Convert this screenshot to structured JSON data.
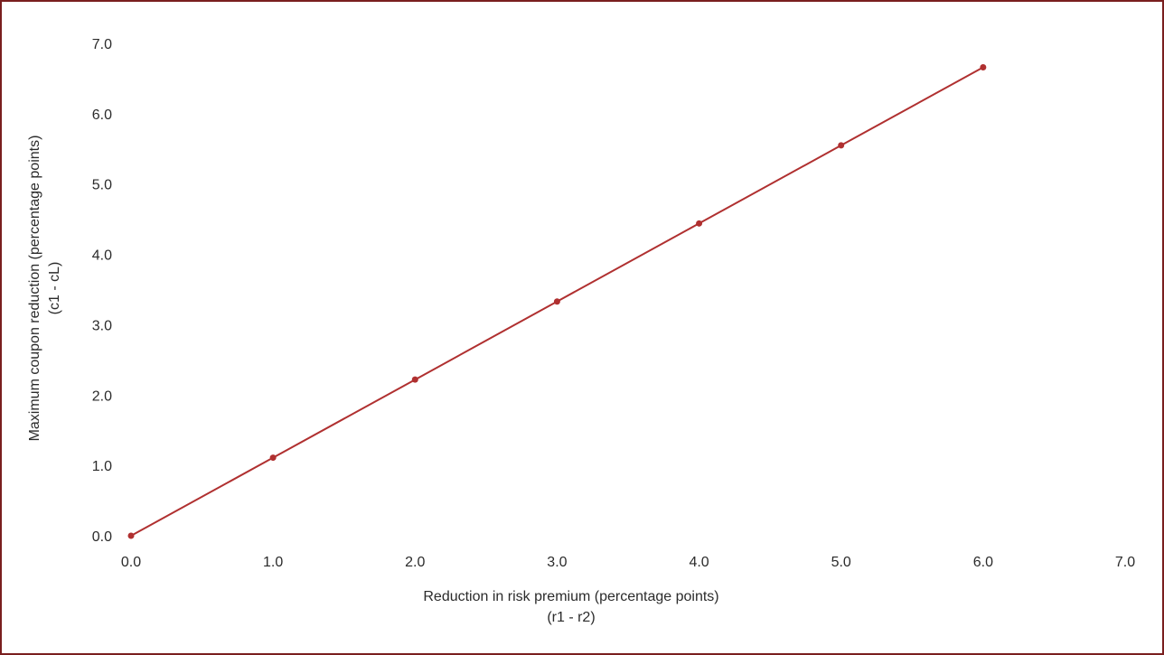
{
  "chart_data": {
    "type": "line",
    "title": "",
    "xlabel": "Reduction in risk premium (percentage points)",
    "xlabel_sub": "(r1 - r2)",
    "ylabel": "Maximum coupon reduction (percentage points)",
    "ylabel_sub": "(c1 - cL)",
    "xlim": [
      0,
      7
    ],
    "ylim": [
      0,
      7
    ],
    "x_ticks": [
      "0.0",
      "1.0",
      "2.0",
      "3.0",
      "4.0",
      "5.0",
      "6.0",
      "7.0"
    ],
    "y_ticks": [
      "0.0",
      "1.0",
      "2.0",
      "3.0",
      "4.0",
      "5.0",
      "6.0",
      "7.0"
    ],
    "grid": false,
    "legend": "none",
    "series": [
      {
        "color": "#b03030",
        "x": [
          0,
          1,
          2,
          3,
          4,
          5,
          6
        ],
        "y": [
          0.0,
          1.11,
          2.22,
          3.33,
          4.44,
          5.55,
          6.66
        ]
      }
    ]
  }
}
